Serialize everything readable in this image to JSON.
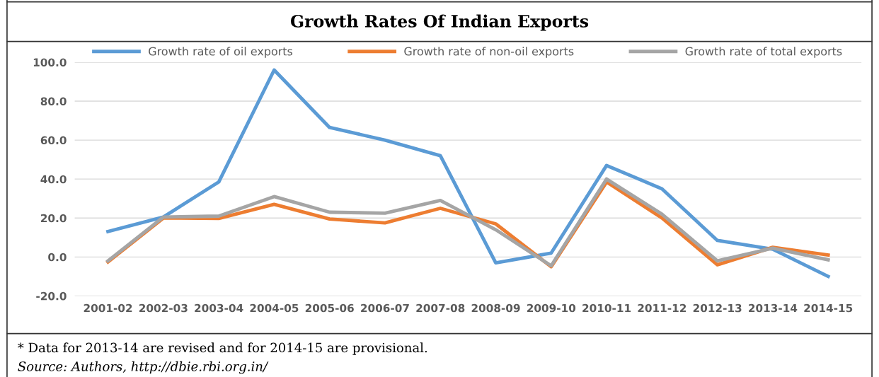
{
  "chart_data": {
    "type": "line",
    "title": "Growth Rates Of Indian Exports",
    "categories": [
      "2001-02",
      "2002-03",
      "2003-04",
      "2004-05",
      "2005-06",
      "2006-07",
      "2007-08",
      "2008-09",
      "2009-10",
      "2010-11",
      "2011-12",
      "2012-13",
      "2013-14",
      "2014-15"
    ],
    "series": [
      {
        "name": "Growth rate of oil exports",
        "color": "#5b9bd5",
        "values": [
          13.1,
          20.5,
          38.5,
          96.0,
          66.5,
          60.0,
          52.0,
          -3.0,
          2.0,
          47.0,
          35.0,
          8.5,
          4.0,
          -10.0
        ]
      },
      {
        "name": "Growth rate of non-oil exports",
        "color": "#ed7d31",
        "values": [
          -2.5,
          20.0,
          19.8,
          27.0,
          19.5,
          17.5,
          25.0,
          17.0,
          -5.0,
          38.5,
          20.0,
          -4.0,
          5.0,
          1.0
        ]
      },
      {
        "name": "Growth rate of total exports",
        "color": "#a5a5a5",
        "values": [
          -2.0,
          20.5,
          21.0,
          31.0,
          23.0,
          22.5,
          29.0,
          14.0,
          -4.5,
          40.0,
          22.0,
          -2.0,
          4.5,
          -1.5
        ]
      }
    ],
    "ylim": [
      -20,
      100
    ],
    "yticks": [
      {
        "value": -20,
        "label": "-20.0"
      },
      {
        "value": 0,
        "label": "0.0"
      },
      {
        "value": 20,
        "label": "20.0"
      },
      {
        "value": 40,
        "label": "40.0"
      },
      {
        "value": 60,
        "label": "60.0"
      },
      {
        "value": 80,
        "label": "80.0"
      },
      {
        "value": 100,
        "label": "100.0"
      }
    ],
    "grid": "y",
    "legend": "top",
    "marker": "none",
    "line_style": "solid",
    "annotations": [
      "* Data for 2013-14 are revised and for 2014-15 are provisional.",
      "Source: Authors, http://dbie.rbi.org.in/"
    ]
  }
}
